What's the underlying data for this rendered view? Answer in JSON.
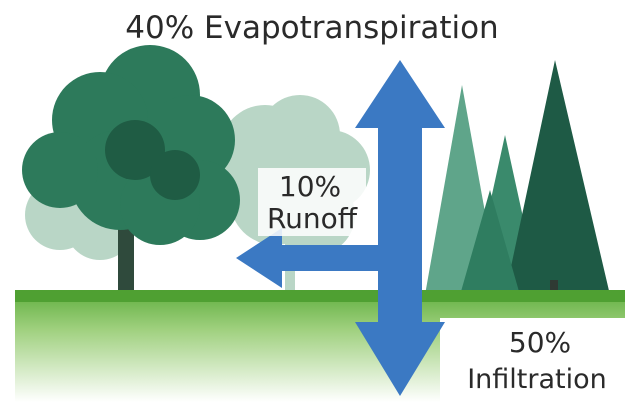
{
  "title": "40% Evapotranspiration",
  "runoff": {
    "percent": "10%",
    "label": "Runoff"
  },
  "infiltration": {
    "percent": "50%",
    "label": "Infiltration"
  }
}
